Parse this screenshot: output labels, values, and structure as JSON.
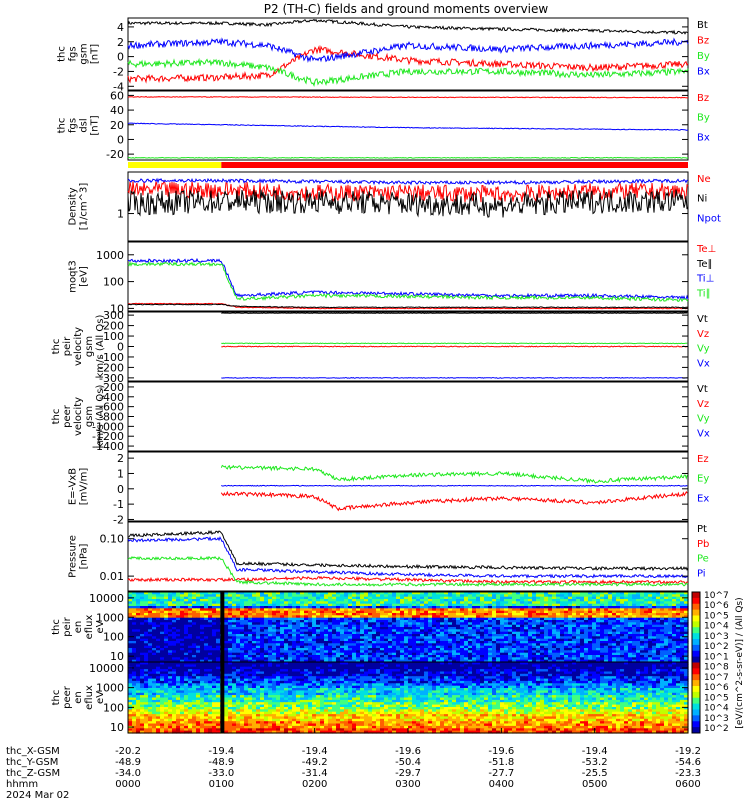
{
  "title": "P2 (TH-C) fields and ground moments overview",
  "colors": {
    "black": "#000000",
    "red": "#ff0000",
    "green": "#1ee81e",
    "blue": "#0000ff",
    "yellow": "#ffff00"
  },
  "panels": [
    {
      "id": "fgs",
      "ylabel": [
        "thc",
        "fgs",
        "gsm",
        "[nT]"
      ],
      "ticks": [
        "4",
        "2",
        "0",
        "-2",
        "-4"
      ],
      "tickvals": [
        4,
        2,
        0,
        -2,
        -4
      ],
      "ylim": [
        -4.5,
        5.2
      ],
      "log": false,
      "legend": [
        {
          "text": "Bt",
          "color": "black"
        },
        {
          "text": "Bz",
          "color": "red"
        },
        {
          "text": "By",
          "color": "green"
        },
        {
          "text": "Bx",
          "color": "blue"
        }
      ]
    },
    {
      "id": "fgs_dsl",
      "ylabel": [
        "thc",
        "fgs",
        "dsl",
        "[nT]"
      ],
      "ticks": [
        "60",
        "40",
        "20",
        "0",
        "-20"
      ],
      "tickvals": [
        60,
        40,
        20,
        0,
        -20
      ],
      "ylim": [
        -28,
        66
      ],
      "log": false,
      "legend": [
        {
          "text": "Bz",
          "color": "red"
        },
        {
          "text": "By",
          "color": "green"
        },
        {
          "text": "Bx",
          "color": "blue"
        }
      ]
    },
    {
      "id": "density",
      "ylabel": [
        "Density",
        "[1/cm^3]"
      ],
      "ticks": [
        "1"
      ],
      "tickvals": [
        1
      ],
      "ylim": [
        0.4,
        4
      ],
      "log": true,
      "legend": [
        {
          "text": "Ne",
          "color": "red"
        },
        {
          "text": "Ni",
          "color": "black"
        },
        {
          "text": "Npot",
          "color": "blue"
        }
      ]
    },
    {
      "id": "temp",
      "ylabel": [
        "moqt3",
        "[eV]"
      ],
      "ticks": [
        "1000",
        "100",
        "10"
      ],
      "tickvals": [
        1000,
        100,
        10
      ],
      "ylim": [
        8,
        3000
      ],
      "log": true,
      "legend": [
        {
          "text": "Te⊥",
          "color": "red"
        },
        {
          "text": "Te∥",
          "color": "black"
        },
        {
          "text": "Ti⊥",
          "color": "blue"
        },
        {
          "text": "Ti∥",
          "color": "green"
        }
      ]
    },
    {
      "id": "peir_vel",
      "ylabel": [
        "thc",
        "peir",
        "velocity",
        "gsm",
        "km/s (All Qs)"
      ],
      "ticks": [
        "300",
        "200",
        "100",
        "0",
        "-100",
        "-200",
        "-300"
      ],
      "tickvals": [
        300,
        200,
        100,
        0,
        -100,
        -200,
        -300
      ],
      "ylim": [
        -330,
        330
      ],
      "log": false,
      "legend": [
        {
          "text": "Vt",
          "color": "black"
        },
        {
          "text": "Vz",
          "color": "red"
        },
        {
          "text": "Vy",
          "color": "green"
        },
        {
          "text": "Vx",
          "color": "blue"
        }
      ]
    },
    {
      "id": "peer_vel",
      "ylabel": [
        "thc",
        "peer",
        "velocity",
        "gsm",
        "km/s (All Qs)"
      ],
      "ticks": [
        "-200",
        "-400",
        "-600",
        "-800",
        "-1000",
        "-1200",
        "-1400"
      ],
      "tickvals": [
        -200,
        -400,
        -600,
        -800,
        -1000,
        -1200,
        -1400
      ],
      "ylim": [
        -1500,
        -100
      ],
      "log": false,
      "legend": [
        {
          "text": "Vt",
          "color": "black"
        },
        {
          "text": "Vz",
          "color": "red"
        },
        {
          "text": "Vy",
          "color": "green"
        },
        {
          "text": "Vx",
          "color": "blue"
        }
      ]
    },
    {
      "id": "efield",
      "ylabel": [
        "E=-VxB",
        "[mV/m]"
      ],
      "ticks": [
        "2",
        "1",
        "0",
        "-1",
        "-2"
      ],
      "tickvals": [
        2,
        1,
        0,
        -1,
        -2
      ],
      "ylim": [
        -2.1,
        2.4
      ],
      "log": false,
      "legend": [
        {
          "text": "Ez",
          "color": "red"
        },
        {
          "text": "Ey",
          "color": "green"
        },
        {
          "text": "Ex",
          "color": "blue"
        }
      ]
    },
    {
      "id": "pressure",
      "ylabel": [
        "Pressure",
        "[nPa]"
      ],
      "ticks": [
        "0.10",
        "0.01"
      ],
      "tickvals": [
        0.1,
        0.01
      ],
      "ylim": [
        0.004,
        0.28
      ],
      "log": true,
      "legend": [
        {
          "text": "Pt",
          "color": "black"
        },
        {
          "text": "Pb",
          "color": "red"
        },
        {
          "text": "Pe",
          "color": "green"
        },
        {
          "text": "Pi",
          "color": "blue"
        }
      ]
    },
    {
      "id": "peir_spec",
      "ylabel": [
        "thc",
        "peir",
        "en",
        "eflux",
        "eV"
      ],
      "ticks": [
        "10000",
        "1000",
        "100",
        "10"
      ],
      "tickvals": [
        10000,
        1000,
        100,
        10
      ],
      "ylim": [
        5,
        20000
      ],
      "log": true,
      "legend": []
    },
    {
      "id": "peer_spec",
      "ylabel": [
        "thc",
        "peer",
        "en",
        "eflux",
        "eV"
      ],
      "ticks": [
        "10000",
        "1000",
        "100",
        "10"
      ],
      "tickvals": [
        10000,
        1000,
        100,
        10
      ],
      "ylim": [
        5,
        20000
      ],
      "log": true,
      "legend": []
    }
  ],
  "colorbar": {
    "ticks": [
      "10^7",
      "10^6",
      "10^5",
      "10^4",
      "10^3",
      "10^2",
      "10^1",
      "10^8",
      "10^7",
      "10^6",
      "10^5",
      "10^4",
      "10^3",
      "10^2"
    ],
    "label": "[eV/(cm^2-s-sr-eV)] / (All Qs)"
  },
  "xaxis": {
    "rows": [
      {
        "label": "thc_X-GSM",
        "values": [
          "-20.2",
          "-19.4",
          "-19.4",
          "-19.6",
          "-19.6",
          "-19.4",
          "-19.2"
        ]
      },
      {
        "label": "thc_Y-GSM",
        "values": [
          "-48.9",
          "-48.9",
          "-49.2",
          "-50.4",
          "-51.8",
          "-53.2",
          "-54.6"
        ]
      },
      {
        "label": "thc_Z-GSM",
        "values": [
          "-34.0",
          "-33.0",
          "-31.4",
          "-29.7",
          "-27.7",
          "-25.5",
          "-23.3"
        ]
      },
      {
        "label": "hhmm",
        "values": [
          "0000",
          "0100",
          "0200",
          "0300",
          "0400",
          "0500",
          "0600"
        ]
      }
    ],
    "date": "2024 Mar 02"
  },
  "chart_data": [
    {
      "type": "line",
      "title": "P2 (TH-C) fields and ground moments overview",
      "ylabel": "thc fgs gsm [nT]",
      "xlabel": "hhmm",
      "x_range": [
        "0000",
        "0600"
      ],
      "ylim": [
        -4.5,
        5.2
      ],
      "series": [
        {
          "name": "Bt",
          "x": [
            "0000",
            "0100",
            "0130",
            "0200",
            "0300",
            "0400",
            "0500",
            "0600"
          ],
          "values": [
            4.5,
            4.5,
            4.3,
            4.9,
            4.0,
            3.7,
            3.5,
            3.2
          ]
        },
        {
          "name": "Bz",
          "x": [
            "0000",
            "0100",
            "0130",
            "0200",
            "0300",
            "0400",
            "0500",
            "0600"
          ],
          "values": [
            -3.0,
            -2.8,
            -2.5,
            1.0,
            -0.5,
            -1.0,
            -1.5,
            -1.0
          ]
        },
        {
          "name": "By",
          "x": [
            "0000",
            "0100",
            "0130",
            "0200",
            "0300",
            "0400",
            "0500",
            "0600"
          ],
          "values": [
            -1.0,
            -0.8,
            -1.5,
            -3.5,
            -2.0,
            -2.0,
            -2.5,
            -2.0
          ]
        },
        {
          "name": "Bx",
          "x": [
            "0000",
            "0100",
            "0130",
            "0200",
            "0300",
            "0400",
            "0500",
            "0600"
          ],
          "values": [
            1.5,
            2.0,
            1.5,
            -0.5,
            1.5,
            1.0,
            1.5,
            2.0
          ]
        }
      ]
    },
    {
      "type": "line",
      "ylabel": "thc fgs dsl [nT]",
      "ylim": [
        -28,
        66
      ],
      "series": [
        {
          "name": "Bz",
          "x": [
            "0000",
            "0600"
          ],
          "values": [
            58,
            57
          ]
        },
        {
          "name": "By",
          "x": [
            "0000",
            "0600"
          ],
          "values": [
            -25,
            -25
          ]
        },
        {
          "name": "Bx",
          "x": [
            "0000",
            "0100",
            "0200",
            "0300",
            "0400",
            "0500",
            "0600"
          ],
          "values": [
            22,
            20,
            18,
            16,
            15,
            14,
            13
          ]
        }
      ]
    },
    {
      "type": "line",
      "ylabel": "Density [1/cm^3]",
      "log": true,
      "ylim": [
        0.4,
        4
      ],
      "series": [
        {
          "name": "Ne",
          "x": [
            "0000",
            "0100",
            "0200",
            "0300",
            "0400",
            "0500",
            "0600"
          ],
          "values": [
            2.2,
            2.2,
            2.0,
            2.0,
            1.9,
            2.1,
            2.1
          ]
        },
        {
          "name": "Ni",
          "x": [
            "0000",
            "0100",
            "0200",
            "0300",
            "0400",
            "0500",
            "0600"
          ],
          "values": [
            1.4,
            1.5,
            1.5,
            1.4,
            1.3,
            1.5,
            1.5
          ]
        },
        {
          "name": "Npot",
          "x": [
            "0000",
            "0100",
            "0200",
            "0300",
            "0400",
            "0500",
            "0600"
          ],
          "values": [
            3.0,
            3.0,
            2.9,
            2.8,
            2.8,
            2.9,
            3.0
          ]
        }
      ]
    },
    {
      "type": "line",
      "ylabel": "moqt3 [eV]",
      "log": true,
      "ylim": [
        8,
        3000
      ],
      "series": [
        {
          "name": "Te⊥",
          "x": [
            "0000",
            "0100",
            "0110",
            "0200",
            "0300",
            "0400",
            "0500",
            "0600"
          ],
          "values": [
            15,
            15,
            11,
            10,
            10,
            10,
            10,
            10
          ]
        },
        {
          "name": "Te∥",
          "x": [
            "0000",
            "0100",
            "0110",
            "0200",
            "0300",
            "0400",
            "0500",
            "0600"
          ],
          "values": [
            14,
            14,
            12,
            11,
            11,
            11,
            11,
            11
          ]
        },
        {
          "name": "Ti⊥",
          "x": [
            "0000",
            "0100",
            "0110",
            "0200",
            "0300",
            "0400",
            "0500",
            "0600"
          ],
          "values": [
            600,
            600,
            30,
            40,
            35,
            30,
            30,
            25
          ]
        },
        {
          "name": "Ti∥",
          "x": [
            "0000",
            "0100",
            "0110",
            "0200",
            "0300",
            "0400",
            "0500",
            "0600"
          ],
          "values": [
            450,
            450,
            22,
            30,
            28,
            25,
            25,
            20
          ]
        }
      ]
    },
    {
      "type": "line",
      "ylabel": "thc peir velocity gsm km/s (All Qs)",
      "ylim": [
        -330,
        330
      ],
      "series": [
        {
          "name": "Vt",
          "x": [
            "0100",
            "0600"
          ],
          "values": [
            320,
            320
          ]
        },
        {
          "name": "Vz",
          "x": [
            "0100",
            "0600"
          ],
          "values": [
            0,
            0
          ]
        },
        {
          "name": "Vy",
          "x": [
            "0100",
            "0600"
          ],
          "values": [
            30,
            30
          ]
        },
        {
          "name": "Vx",
          "x": [
            "0100",
            "0600"
          ],
          "values": [
            -300,
            -300
          ]
        }
      ]
    },
    {
      "type": "line",
      "ylabel": "thc peer velocity gsm km/s (All Qs)",
      "ylim": [
        -1500,
        -100
      ],
      "series": []
    },
    {
      "type": "line",
      "ylabel": "E=-VxB [mV/m]",
      "ylim": [
        -2.1,
        2.4
      ],
      "series": [
        {
          "name": "Ez",
          "x": [
            "0100",
            "0200",
            "0215",
            "0300",
            "0400",
            "0500",
            "0600"
          ],
          "values": [
            -0.3,
            -0.5,
            -1.3,
            -0.9,
            -0.6,
            -0.9,
            -0.3
          ]
        },
        {
          "name": "Ey",
          "x": [
            "0100",
            "0200",
            "0215",
            "0300",
            "0400",
            "0500",
            "0600"
          ],
          "values": [
            1.4,
            1.3,
            0.6,
            0.9,
            1.0,
            0.5,
            0.8
          ]
        },
        {
          "name": "Ex",
          "x": [
            "0100",
            "0600"
          ],
          "values": [
            0.2,
            0.2
          ]
        }
      ]
    },
    {
      "type": "line",
      "ylabel": "Pressure [nPa]",
      "log": true,
      "ylim": [
        0.004,
        0.28
      ],
      "series": [
        {
          "name": "Pt",
          "x": [
            "0000",
            "0100",
            "0110",
            "0200",
            "0300",
            "0400",
            "0500",
            "0600"
          ],
          "values": [
            0.12,
            0.15,
            0.022,
            0.02,
            0.018,
            0.017,
            0.016,
            0.016
          ]
        },
        {
          "name": "Pb",
          "x": [
            "0000",
            "0100",
            "0110",
            "0200",
            "0300",
            "0400",
            "0500",
            "0600"
          ],
          "values": [
            0.008,
            0.008,
            0.008,
            0.009,
            0.008,
            0.007,
            0.007,
            0.007
          ]
        },
        {
          "name": "Pe",
          "x": [
            "0000",
            "0100",
            "0110",
            "0200",
            "0300",
            "0400",
            "0500",
            "0600"
          ],
          "values": [
            0.03,
            0.03,
            0.007,
            0.006,
            0.006,
            0.006,
            0.006,
            0.006
          ]
        },
        {
          "name": "Pi",
          "x": [
            "0000",
            "0100",
            "0110",
            "0200",
            "0300",
            "0400",
            "0500",
            "0600"
          ],
          "values": [
            0.09,
            0.1,
            0.015,
            0.013,
            0.011,
            0.01,
            0.01,
            0.01
          ]
        }
      ]
    },
    {
      "type": "heatmap",
      "ylabel": "thc peir en eflux eV",
      "log": true,
      "ylim": [
        5,
        20000
      ]
    },
    {
      "type": "heatmap",
      "ylabel": "thc peer en eflux eV",
      "log": true,
      "ylim": [
        5,
        20000
      ]
    }
  ]
}
